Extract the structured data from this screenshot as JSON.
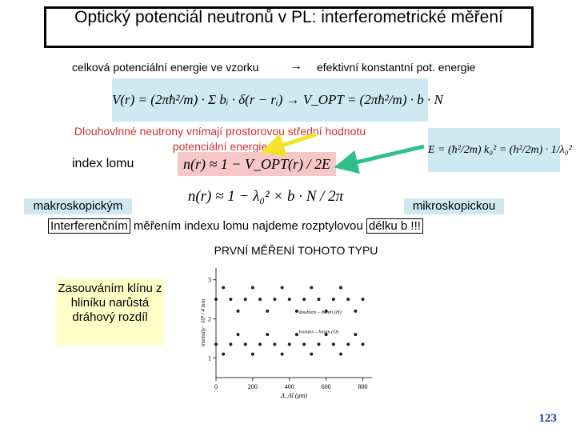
{
  "header": {
    "title": "Optický potenciál neutronů v PL: interferometrické měření"
  },
  "intro": {
    "left": "celková potenciální energie ve vzorku",
    "arrow": "→",
    "right": "efektivní konstantní pot. energie"
  },
  "formulas": {
    "potential": "V(r) = (2πħ²/m) · Σ bᵢ · δ(r − rᵢ) → V_OPT = (2πħ²/m) · b · N",
    "index": "n(r) ≈ 1 − V_OPT(r) / 2E",
    "energy": "E = (ħ²/2m) k₀² = (h²/2m) · 1/λ₀²",
    "index_b": "n(r) ≈ 1 − λ₀² × b · N / 2π"
  },
  "note": "Dlouhovlnné neutrony vnímají prostorovou střední hodnotu potenciální energie",
  "index_label": "index lomu",
  "macro": "makroskopickým",
  "micro": "mikroskopickou",
  "conclusion": {
    "boxed_start": "Interferenčním",
    "middle": "měřením indexu lomu najdeme rozptylovou",
    "boxed_end": "délku b !!!"
  },
  "first": "PRVNÍ MĚŘENÍ TOHOTO TYPU",
  "callout": "Zasouváním klínu z hliníku narůstá dráhový rozdíl",
  "plot": {
    "xlabel": "Δ_Al (μm)",
    "ylabel": "intensity · 10³ / 4 min",
    "xlim": [
      0,
      850
    ],
    "ylim": [
      0.5,
      3.3
    ],
    "xticks": [
      0,
      200,
      400,
      600,
      800
    ],
    "yticks": [
      1,
      2,
      3
    ],
    "x": [
      0,
      40,
      80,
      120,
      160,
      200,
      240,
      280,
      320,
      360,
      400,
      440,
      480,
      520,
      560,
      600,
      640,
      680,
      720,
      760,
      800
    ],
    "series": [
      {
        "name": "doublets – beam (H)",
        "values": [
          2.5,
          2.8,
          2.5,
          2.2,
          2.5,
          2.8,
          2.5,
          2.2,
          2.5,
          2.8,
          2.5,
          2.2,
          2.5,
          2.8,
          2.5,
          2.2,
          2.5,
          2.8,
          2.5,
          2.2,
          2.5
        ]
      },
      {
        "name": "lowuns – beam (O)",
        "values": [
          1.35,
          1.1,
          1.35,
          1.6,
          1.35,
          1.1,
          1.35,
          1.6,
          1.35,
          1.1,
          1.35,
          1.6,
          1.35,
          1.1,
          1.35,
          1.6,
          1.35,
          1.1,
          1.35,
          1.6,
          1.35
        ]
      }
    ]
  },
  "page_number": "123"
}
